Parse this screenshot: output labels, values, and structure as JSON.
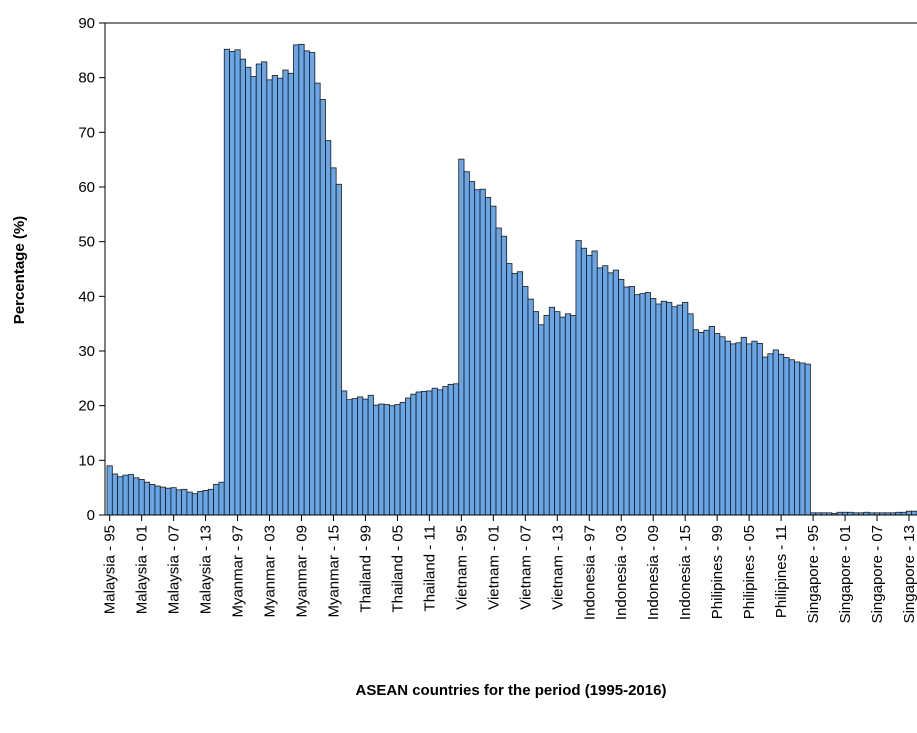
{
  "chart_data": {
    "type": "bar",
    "x_label": "ASEAN countries for the period (1995-2016)",
    "y_label": "Percentage (%)",
    "color": "#6aa5e6",
    "ylim": [
      0,
      90
    ],
    "yticks": [
      0,
      10,
      20,
      30,
      40,
      50,
      60,
      70,
      80,
      90
    ],
    "categories": [
      "Malaysia - 95",
      null,
      null,
      null,
      null,
      null,
      "Malaysia - 01",
      null,
      null,
      null,
      null,
      null,
      "Malaysia - 07",
      null,
      null,
      null,
      null,
      null,
      "Malaysia - 13",
      null,
      null,
      null,
      null,
      null,
      "Myanmar - 97",
      null,
      null,
      null,
      null,
      null,
      "Myanmar - 03",
      null,
      null,
      null,
      null,
      null,
      "Myanmar - 09",
      null,
      null,
      null,
      null,
      null,
      "Myanmar - 15",
      null,
      null,
      null,
      null,
      null,
      "Thailand - 99",
      null,
      null,
      null,
      null,
      null,
      "Thailand - 05",
      null,
      null,
      null,
      null,
      null,
      "Thailand - 11",
      null,
      null,
      null,
      null,
      null,
      "Vietnam - 95",
      null,
      null,
      null,
      null,
      null,
      "Vietnam - 01",
      null,
      null,
      null,
      null,
      null,
      "Vietnam - 07",
      null,
      null,
      null,
      null,
      null,
      "Vietnam - 13",
      null,
      null,
      null,
      null,
      null,
      "Indonesia - 97",
      null,
      null,
      null,
      null,
      null,
      "Indonesia - 03",
      null,
      null,
      null,
      null,
      null,
      "Indonesia - 09",
      null,
      null,
      null,
      null,
      null,
      "Indonesia - 15",
      null,
      null,
      null,
      null,
      null,
      "Philipines - 99",
      null,
      null,
      null,
      null,
      null,
      "Philipines - 05",
      null,
      null,
      null,
      null,
      null,
      "Philipines - 11",
      null,
      null,
      null,
      null,
      null,
      "Singapore - 95",
      null,
      null,
      null,
      null,
      null,
      "Singapore - 01",
      null,
      null,
      null,
      null,
      null,
      "Singapore - 07",
      null,
      null,
      null,
      null,
      null,
      "Singapore - 13",
      null
    ],
    "values": [
      9.0,
      7.5,
      7.0,
      7.3,
      7.4,
      6.8,
      6.5,
      6.0,
      5.6,
      5.3,
      5.1,
      4.9,
      5.0,
      4.6,
      4.7,
      4.2,
      3.9,
      4.3,
      4.5,
      4.7,
      5.6,
      6.0,
      85.2,
      84.8,
      85.1,
      83.4,
      81.9,
      80.2,
      82.5,
      82.9,
      79.6,
      80.4,
      79.9,
      81.4,
      80.8,
      86.0,
      86.1,
      84.9,
      84.6,
      79.0,
      76.0,
      68.5,
      63.5,
      60.5,
      22.7,
      21.1,
      21.3,
      21.6,
      21.2,
      21.9,
      20.1,
      20.3,
      20.2,
      20.0,
      20.2,
      20.6,
      21.4,
      22.1,
      22.5,
      22.6,
      22.7,
      23.2,
      22.9,
      23.5,
      23.9,
      24.0,
      65.1,
      62.8,
      61.0,
      59.5,
      59.6,
      58.1,
      56.5,
      52.5,
      51.0,
      46.0,
      44.2,
      44.5,
      41.8,
      39.5,
      37.2,
      34.8,
      36.5,
      38.0,
      37.2,
      36.2,
      36.8,
      36.5,
      50.2,
      48.8,
      47.5,
      48.3,
      45.2,
      45.6,
      44.3,
      44.8,
      43.1,
      41.7,
      41.8,
      40.3,
      40.5,
      40.7,
      39.6,
      38.6,
      39.1,
      38.9,
      38.1,
      38.4,
      38.9,
      36.8,
      33.9,
      33.4,
      33.8,
      34.5,
      33.2,
      32.6,
      31.8,
      31.3,
      31.5,
      32.5,
      31.3,
      31.8,
      31.4,
      28.9,
      29.5,
      30.2,
      29.4,
      28.8,
      28.4,
      28.0,
      27.8,
      27.6,
      0.4,
      0.4,
      0.4,
      0.4,
      0.3,
      0.5,
      0.5,
      0.5,
      0.4,
      0.4,
      0.5,
      0.4,
      0.4,
      0.4,
      0.4,
      0.4,
      0.5,
      0.5,
      0.7,
      0.7
    ]
  }
}
